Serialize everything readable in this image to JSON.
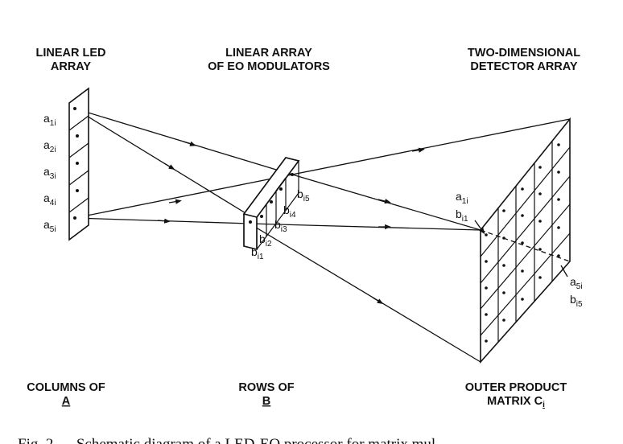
{
  "labels": {
    "led_title_1": "LINEAR LED",
    "led_title_2": "ARRAY",
    "mod_title_1": "LINEAR ARRAY",
    "mod_title_2": "OF EO MODULATORS",
    "det_title_1": "TWO-DIMENSIONAL",
    "det_title_2": "DETECTOR ARRAY",
    "bottom_left_1": "COLUMNS OF",
    "bottom_left_2": "A",
    "bottom_mid_1": "ROWS OF",
    "bottom_mid_2": "B",
    "bottom_right_1": "OUTER PRODUCT",
    "bottom_right_2": "MATRIX C",
    "bottom_right_sub": "i"
  },
  "led_elements": [
    {
      "base": "a",
      "sub": "1i"
    },
    {
      "base": "a",
      "sub": "2i"
    },
    {
      "base": "a",
      "sub": "3i"
    },
    {
      "base": "a",
      "sub": "4i"
    },
    {
      "base": "a",
      "sub": "5i"
    }
  ],
  "modulator_elements": [
    {
      "base": "b",
      "sub": "i1"
    },
    {
      "base": "b",
      "sub": "i2"
    },
    {
      "base": "b",
      "sub": "i3"
    },
    {
      "base": "b",
      "sub": "i4"
    },
    {
      "base": "b",
      "sub": "i5"
    }
  ],
  "detector_annotations": {
    "top": [
      {
        "base": "a",
        "sub": "1i"
      },
      {
        "base": "b",
        "sub": "i1"
      }
    ],
    "bottom": [
      {
        "base": "a",
        "sub": "5i"
      },
      {
        "base": "b",
        "sub": "i5"
      }
    ]
  },
  "caption": "Fig. 2 — Schematic diagram of a LED-EO processor for matrix mul"
}
